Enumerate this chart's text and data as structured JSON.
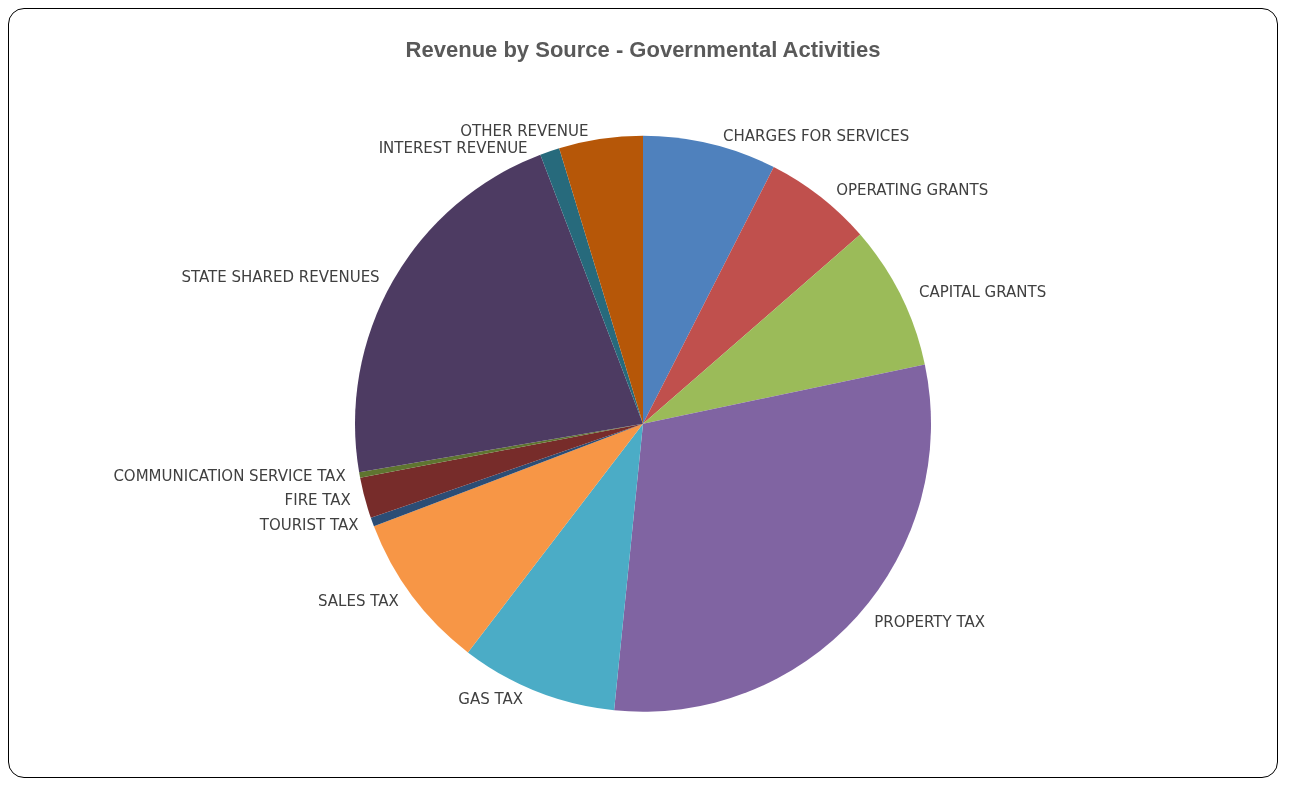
{
  "chart_data": {
    "type": "pie",
    "title": "Revenue by Source - Governmental Activities",
    "categories": [
      "CHARGES FOR SERVICES",
      "OPERATING GRANTS",
      "CAPITAL GRANTS",
      "PROPERTY TAX",
      "GAS TAX",
      "SALES TAX",
      "TOURIST TAX",
      "FIRE TAX",
      "COMMUNICATION SERVICE TAX",
      "STATE SHARED REVENUES",
      "INTEREST REVENUE",
      "OTHER REVENUE"
    ],
    "values": [
      7.5,
      6.1,
      8.1,
      29.9,
      8.8,
      8.8,
      0.5,
      2.3,
      0.3,
      21.9,
      1.1,
      4.7
    ],
    "colors": [
      "#4f81bd",
      "#c0504d",
      "#9bbb59",
      "#8064a2",
      "#4bacc6",
      "#f79646",
      "#2c4d75",
      "#772c2a",
      "#5f7530",
      "#4d3b62",
      "#276a7c",
      "#b65708"
    ],
    "legend": false
  }
}
